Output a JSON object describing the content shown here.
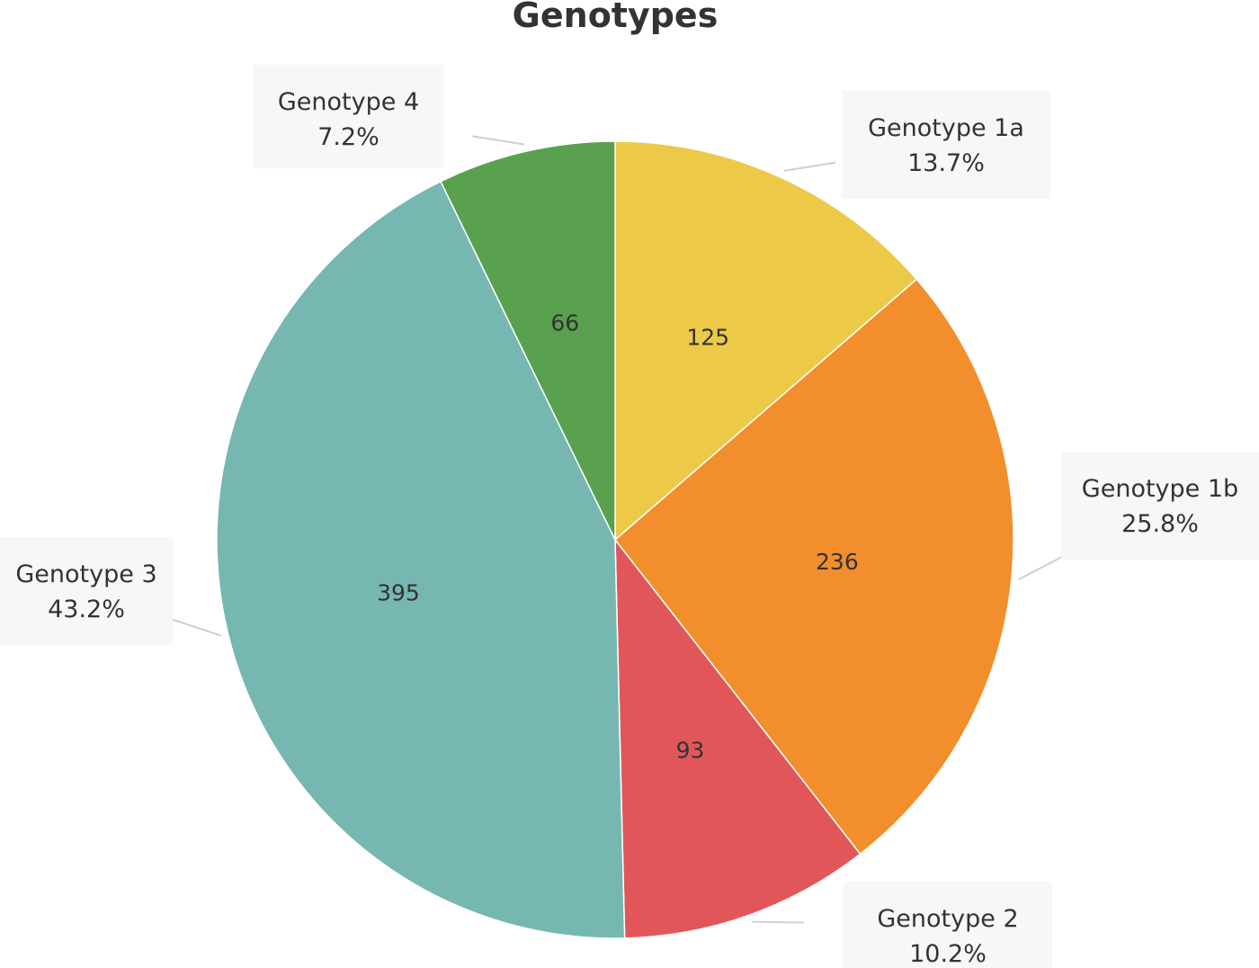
{
  "chart_data": {
    "type": "pie",
    "title": "Genotypes",
    "slices": [
      {
        "name": "Genotype 1a",
        "value": 125,
        "percent": "13.7%",
        "color": "#EDC948"
      },
      {
        "name": "Genotype 1b",
        "value": 236,
        "percent": "25.8%",
        "color": "#F28E2B"
      },
      {
        "name": "Genotype 2",
        "value": 93,
        "percent": "10.2%",
        "color": "#E15759"
      },
      {
        "name": "Genotype 3",
        "value": 395,
        "percent": "43.2%",
        "color": "#76B7B2"
      },
      {
        "name": "Genotype 4",
        "value": 66,
        "percent": "7.2%",
        "color": "#59A14F"
      }
    ],
    "start_angle": "12 o'clock",
    "direction": "clockwise",
    "legend": "none (callout labels beside each slice)"
  }
}
